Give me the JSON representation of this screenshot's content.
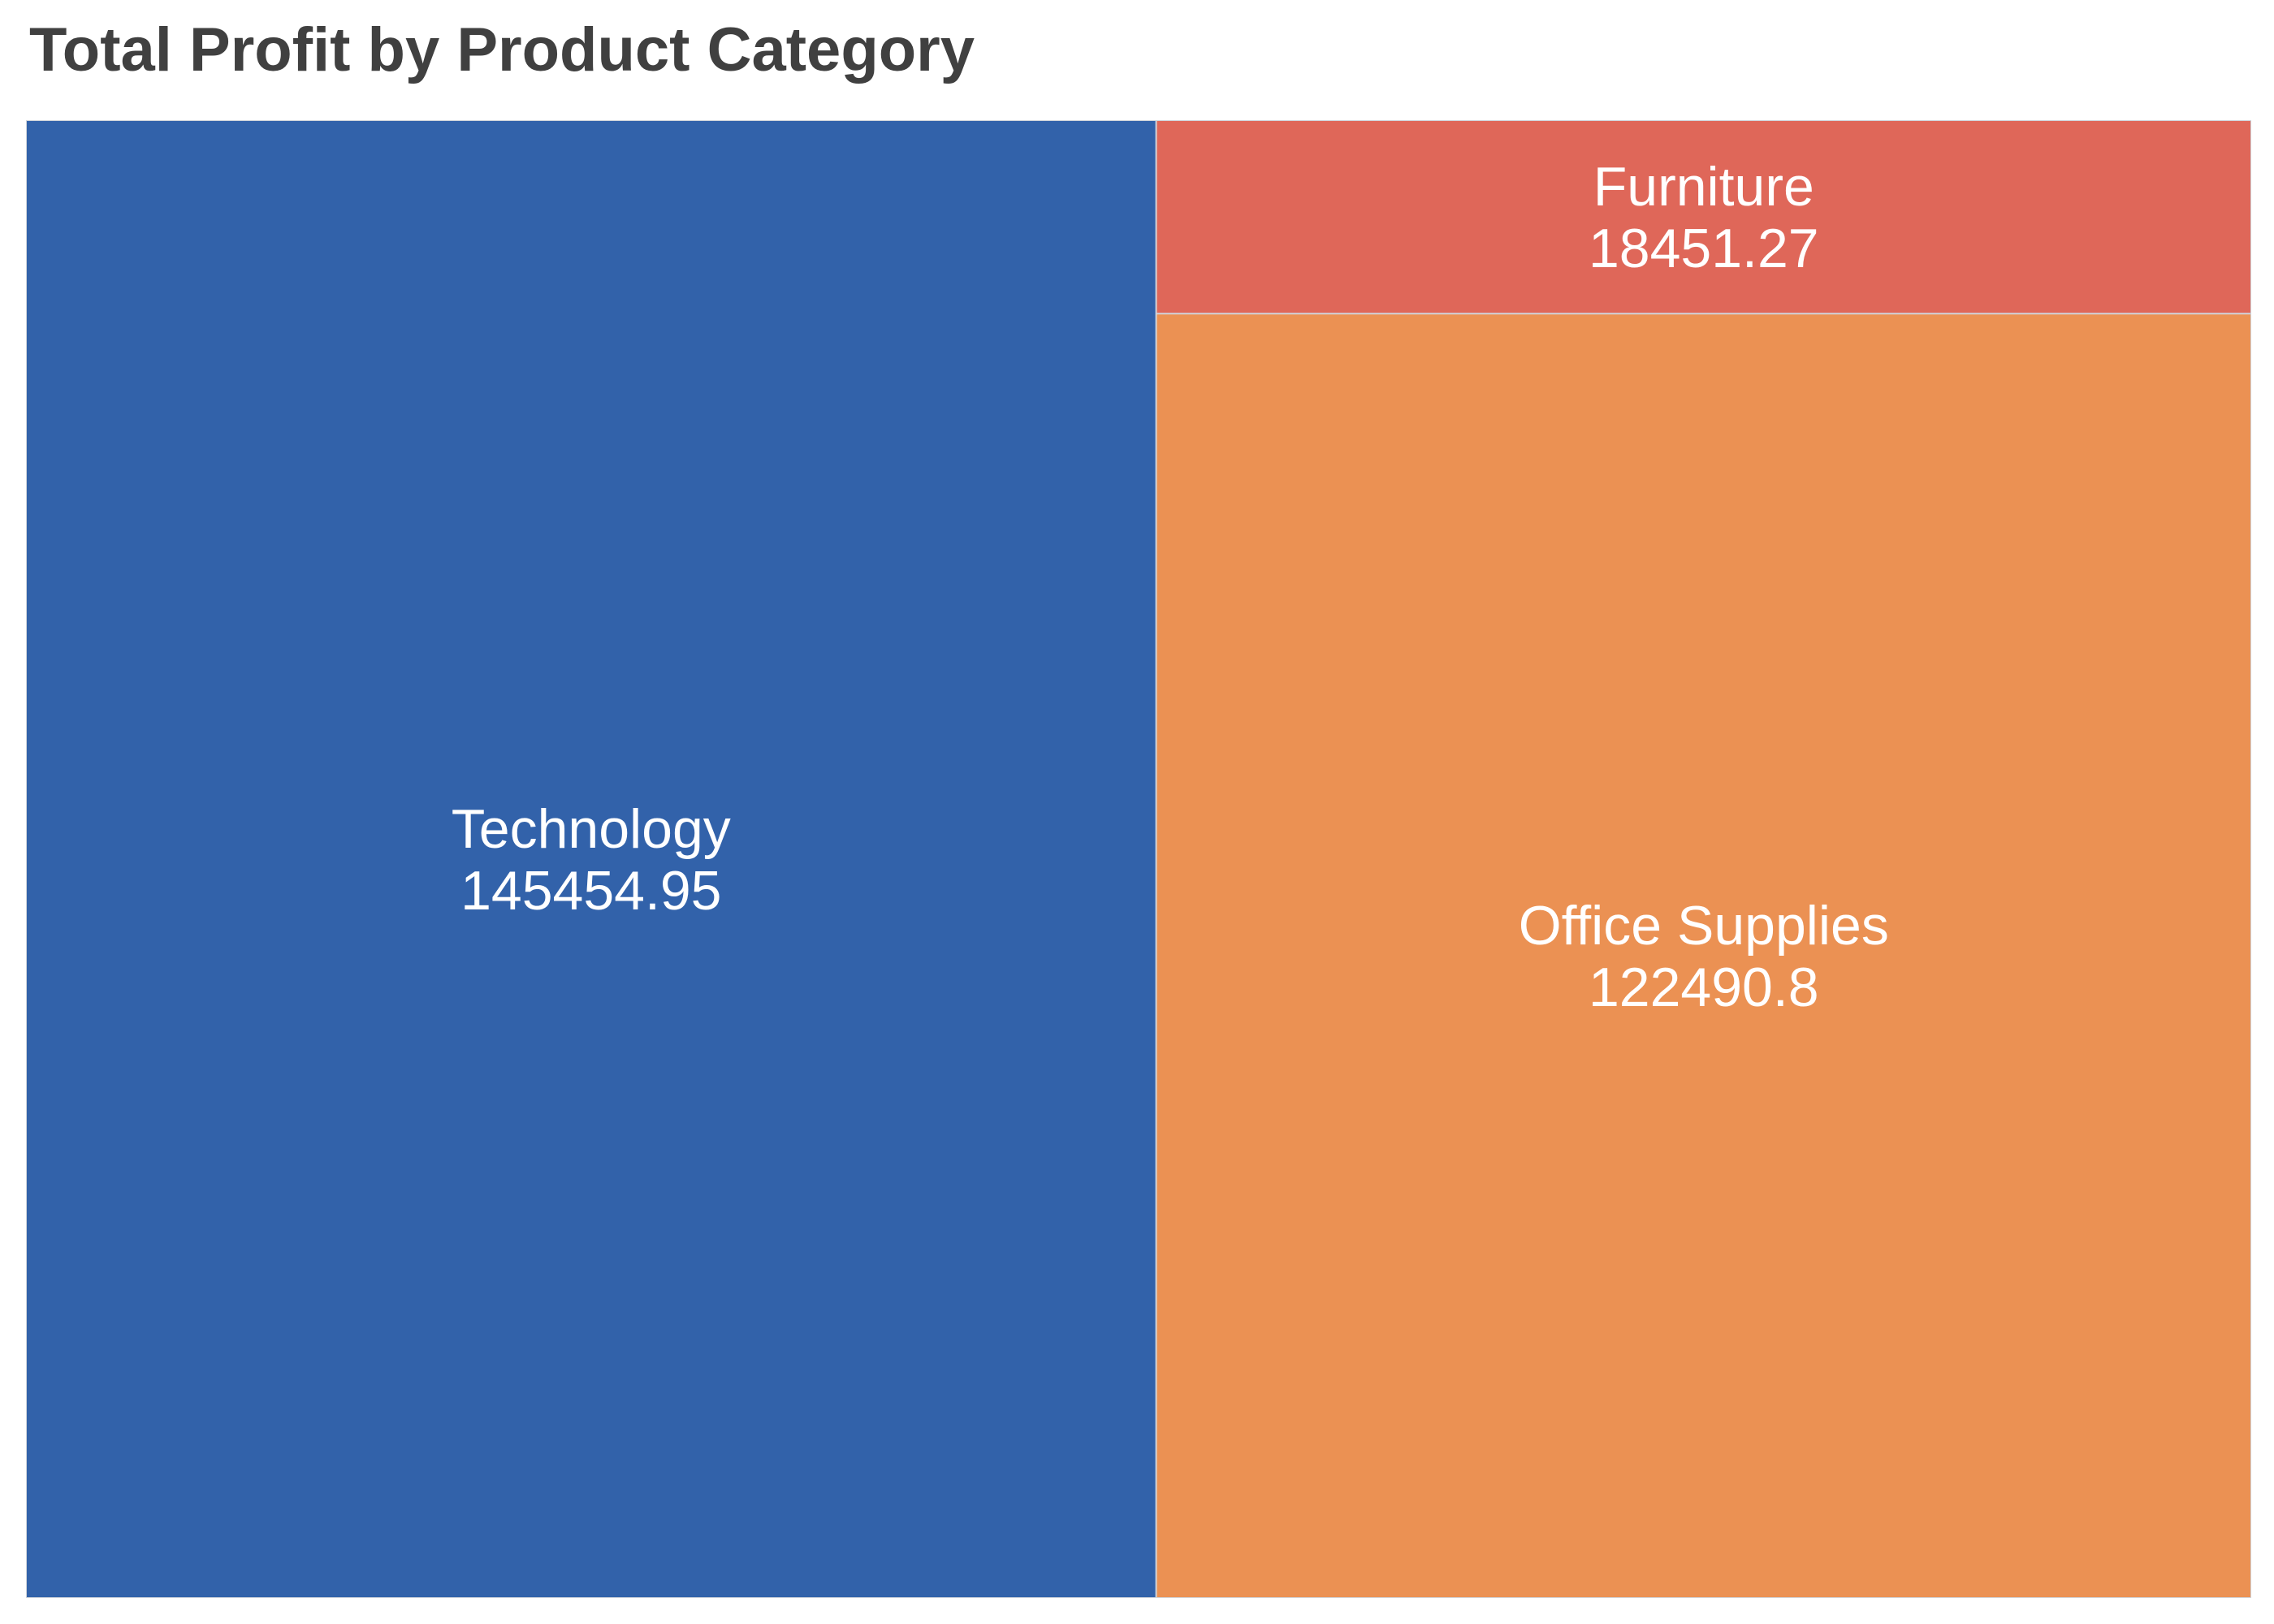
{
  "chart_data": {
    "type": "treemap",
    "title": "Total Profit by Product Category",
    "categories": [
      "Technology",
      "Office Supplies",
      "Furniture"
    ],
    "values": [
      145454.95,
      122490.8,
      18451.27
    ],
    "value_labels": [
      "145454.95",
      "122490.8",
      "18451.27"
    ],
    "colors": {
      "Technology": "#3262AA",
      "Office Supplies": "#EB9153",
      "Furniture": "#DF6759"
    },
    "border_color": "#D0D4DA"
  }
}
